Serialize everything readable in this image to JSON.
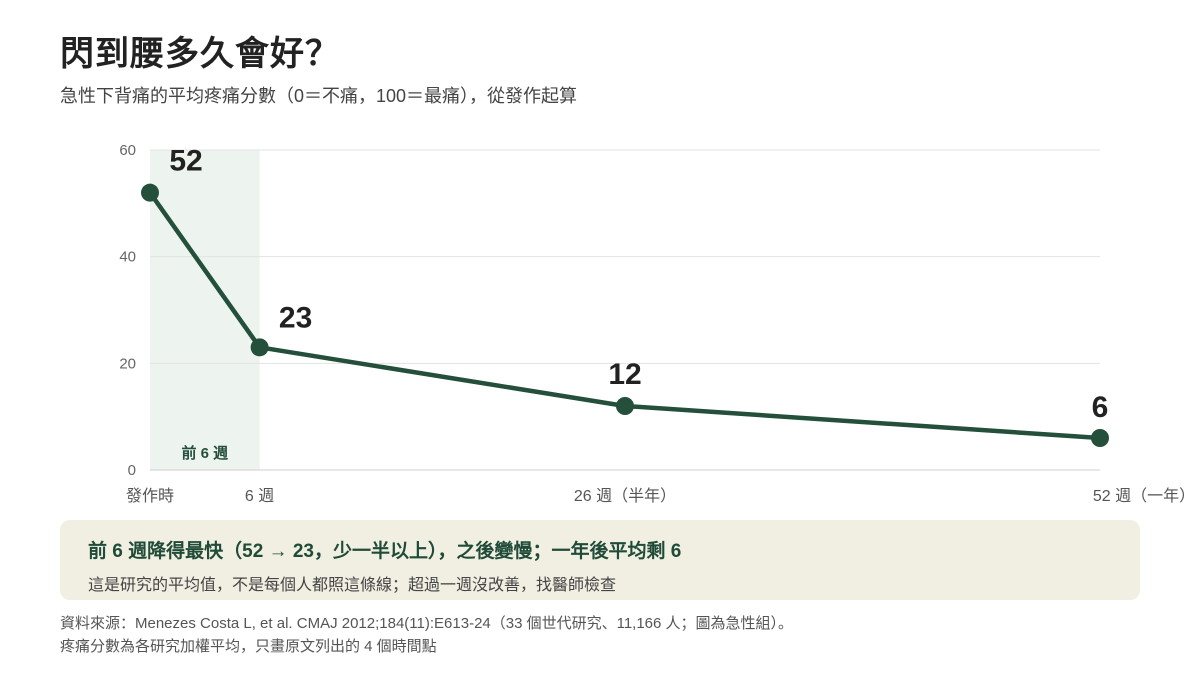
{
  "title": "閃到腰多久會好？",
  "subtitle": "急性下背痛的平均疼痛分數（0＝不痛，100＝最痛），從發作起算",
  "chart_data": {
    "type": "line",
    "x": [
      0,
      6,
      26,
      52
    ],
    "x_tick_labels": [
      "發作時",
      "6 週",
      "26 週（半年）",
      "52 週（一年）"
    ],
    "series": [
      {
        "values": [
          52,
          23,
          12,
          6
        ]
      }
    ],
    "data_labels": [
      "52",
      "23",
      "12",
      "6"
    ],
    "ylim": [
      0,
      60
    ],
    "y_ticks": [
      "0",
      "20",
      "40",
      "60"
    ],
    "xlim": [
      0,
      52
    ],
    "shaded_region": {
      "x_start": 0,
      "x_end": 6,
      "label": "前 6 週"
    },
    "grid": "horizontal",
    "colors": {
      "line": "#244f3b",
      "shade": "#edf3ee",
      "grid": "#e3e3e3"
    }
  },
  "callout": {
    "headline": "前 6 週降得最快（52 → 23，少一半以上），之後變慢；一年後平均剩 6",
    "body": "這是研究的平均值，不是每個人都照這條線；超過一週沒改善，找醫師檢查"
  },
  "footnote": {
    "line1": "資料來源：Menezes Costa L, et al. CMAJ 2012;184(11):E613-24（33 個世代研究、11,166 人；圖為急性組）。",
    "line2": "疼痛分數為各研究加權平均，只畫原文列出的 4 個時間點"
  }
}
